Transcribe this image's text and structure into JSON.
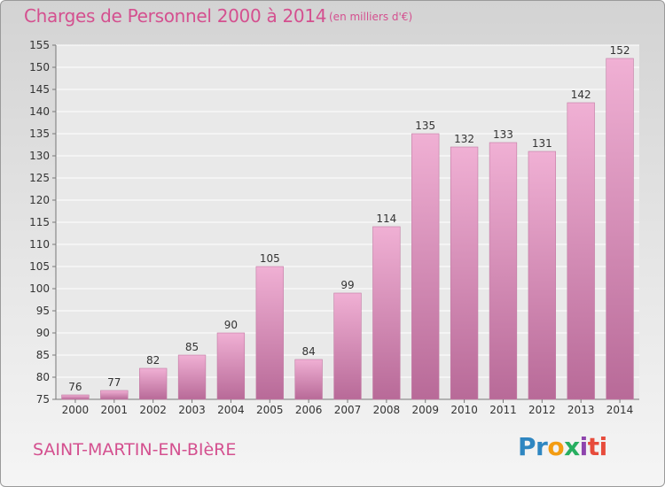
{
  "title": "Charges de Personnel 2000 à 2014",
  "unit": "(en milliers d'€)",
  "city": "SAINT-MARTIN-EN-BIèRE",
  "brand": [
    "Pr",
    "o",
    "x",
    "i",
    "ti"
  ],
  "colors": {
    "title": "#d4508f",
    "bar_top": "#f0b0d4",
    "bar_bottom": "#b86a98"
  },
  "chart_data": {
    "type": "bar",
    "title": "Charges de Personnel 2000 à 2014",
    "subtitle": "(en milliers d'€)",
    "categories": [
      "2000",
      "2001",
      "2002",
      "2003",
      "2004",
      "2005",
      "2006",
      "2007",
      "2008",
      "2009",
      "2010",
      "2011",
      "2012",
      "2013",
      "2014"
    ],
    "values": [
      76,
      77,
      82,
      85,
      90,
      105,
      84,
      99,
      114,
      135,
      132,
      133,
      131,
      142,
      152
    ],
    "ylim": [
      75,
      155
    ],
    "yticks": [
      75,
      80,
      85,
      90,
      95,
      100,
      105,
      110,
      115,
      120,
      125,
      130,
      135,
      140,
      145,
      150,
      155
    ],
    "grid": true
  }
}
